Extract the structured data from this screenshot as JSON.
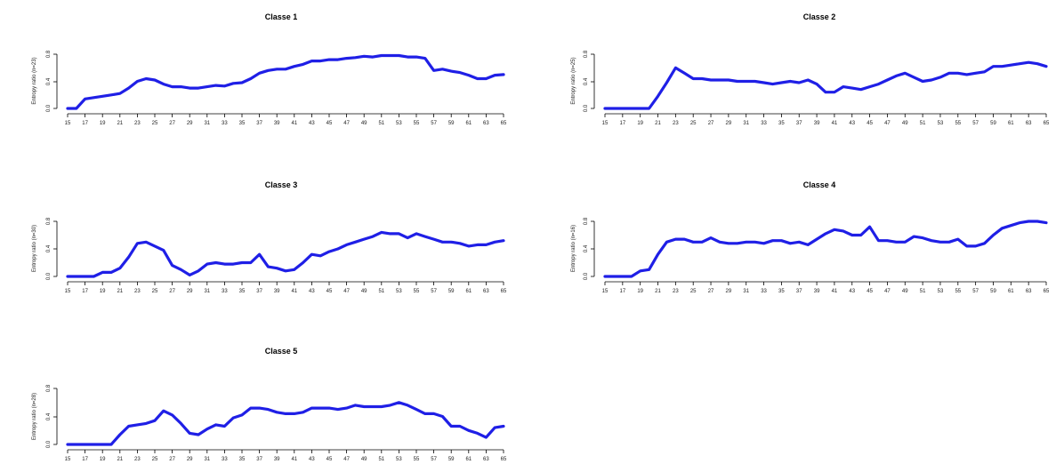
{
  "colors": {
    "line": "#1f1fe6",
    "axis": "#000000",
    "background": "#ffffff"
  },
  "chart_data": [
    {
      "type": "line",
      "title": "Classe 1",
      "ylabel": "Entropy ratio (n=23)",
      "ylim": [
        0,
        1
      ],
      "yticks": [
        "0.0",
        "0.4",
        "0.8"
      ],
      "x": [
        15,
        16,
        17,
        18,
        19,
        20,
        21,
        22,
        23,
        24,
        25,
        26,
        27,
        28,
        29,
        30,
        31,
        32,
        33,
        34,
        35,
        36,
        37,
        38,
        39,
        40,
        41,
        42,
        43,
        44,
        45,
        46,
        47,
        48,
        49,
        50,
        51,
        52,
        53,
        54,
        55,
        56,
        57,
        58,
        59,
        60,
        61,
        62,
        63,
        64,
        65
      ],
      "xticks": [
        "15",
        "17",
        "19",
        "21",
        "23",
        "25",
        "27",
        "29",
        "31",
        "33",
        "35",
        "37",
        "39",
        "41",
        "43",
        "45",
        "47",
        "49",
        "51",
        "53",
        "55",
        "57",
        "59",
        "61",
        "63",
        "65"
      ],
      "values": [
        0.0,
        0.0,
        0.14,
        0.16,
        0.18,
        0.2,
        0.22,
        0.3,
        0.4,
        0.44,
        0.42,
        0.36,
        0.32,
        0.32,
        0.3,
        0.3,
        0.32,
        0.34,
        0.33,
        0.37,
        0.38,
        0.44,
        0.52,
        0.56,
        0.58,
        0.58,
        0.62,
        0.65,
        0.7,
        0.7,
        0.72,
        0.72,
        0.74,
        0.75,
        0.77,
        0.76,
        0.78,
        0.78,
        0.78,
        0.76,
        0.76,
        0.74,
        0.56,
        0.58,
        0.55,
        0.53,
        0.49,
        0.44,
        0.44,
        0.49,
        0.5
      ]
    },
    {
      "type": "line",
      "title": "Classe 2",
      "ylabel": "Entropy ratio (n=25)",
      "ylim": [
        0,
        1
      ],
      "yticks": [
        "0.0",
        "0.4",
        "0.8"
      ],
      "x": [
        15,
        16,
        17,
        18,
        19,
        20,
        21,
        22,
        23,
        24,
        25,
        26,
        27,
        28,
        29,
        30,
        31,
        32,
        33,
        34,
        35,
        36,
        37,
        38,
        39,
        40,
        41,
        42,
        43,
        44,
        45,
        46,
        47,
        48,
        49,
        50,
        51,
        52,
        53,
        54,
        55,
        56,
        57,
        58,
        59,
        60,
        61,
        62,
        63,
        64,
        65
      ],
      "xticks": [
        "15",
        "17",
        "19",
        "21",
        "23",
        "25",
        "27",
        "29",
        "31",
        "33",
        "35",
        "37",
        "39",
        "41",
        "43",
        "45",
        "47",
        "49",
        "51",
        "53",
        "55",
        "57",
        "59",
        "61",
        "63",
        "65"
      ],
      "values": [
        0.0,
        0.0,
        0.0,
        0.0,
        0.0,
        0.0,
        0.18,
        0.38,
        0.6,
        0.52,
        0.44,
        0.44,
        0.42,
        0.42,
        0.42,
        0.4,
        0.4,
        0.4,
        0.38,
        0.36,
        0.38,
        0.4,
        0.38,
        0.42,
        0.36,
        0.24,
        0.24,
        0.32,
        0.3,
        0.28,
        0.32,
        0.36,
        0.42,
        0.48,
        0.52,
        0.46,
        0.4,
        0.42,
        0.46,
        0.52,
        0.52,
        0.5,
        0.52,
        0.54,
        0.62,
        0.62,
        0.64,
        0.66,
        0.68,
        0.66,
        0.62
      ]
    },
    {
      "type": "line",
      "title": "Classe 3",
      "ylabel": "Entropy ratio (n=30)",
      "ylim": [
        0,
        1
      ],
      "yticks": [
        "0.0",
        "0.4",
        "0.8"
      ],
      "x": [
        15,
        16,
        17,
        18,
        19,
        20,
        21,
        22,
        23,
        24,
        25,
        26,
        27,
        28,
        29,
        30,
        31,
        32,
        33,
        34,
        35,
        36,
        37,
        38,
        39,
        40,
        41,
        42,
        43,
        44,
        45,
        46,
        47,
        48,
        49,
        50,
        51,
        52,
        53,
        54,
        55,
        56,
        57,
        58,
        59,
        60,
        61,
        62,
        63,
        64,
        65
      ],
      "xticks": [
        "15",
        "17",
        "19",
        "21",
        "23",
        "25",
        "27",
        "29",
        "31",
        "33",
        "35",
        "37",
        "39",
        "41",
        "43",
        "45",
        "47",
        "49",
        "51",
        "53",
        "55",
        "57",
        "59",
        "61",
        "63",
        "65"
      ],
      "values": [
        0.0,
        0.0,
        0.0,
        0.0,
        0.06,
        0.06,
        0.12,
        0.28,
        0.48,
        0.5,
        0.44,
        0.38,
        0.16,
        0.1,
        0.02,
        0.08,
        0.18,
        0.2,
        0.18,
        0.18,
        0.2,
        0.2,
        0.32,
        0.14,
        0.12,
        0.08,
        0.1,
        0.2,
        0.32,
        0.3,
        0.36,
        0.4,
        0.46,
        0.5,
        0.54,
        0.58,
        0.64,
        0.62,
        0.62,
        0.56,
        0.62,
        0.58,
        0.54,
        0.5,
        0.5,
        0.48,
        0.44,
        0.46,
        0.46,
        0.5,
        0.52
      ]
    },
    {
      "type": "line",
      "title": "Classe 4",
      "ylabel": "Entropy ratio (n=16)",
      "ylim": [
        0,
        1
      ],
      "yticks": [
        "0.0",
        "0.4",
        "0.8"
      ],
      "x": [
        15,
        16,
        17,
        18,
        19,
        20,
        21,
        22,
        23,
        24,
        25,
        26,
        27,
        28,
        29,
        30,
        31,
        32,
        33,
        34,
        35,
        36,
        37,
        38,
        39,
        40,
        41,
        42,
        43,
        44,
        45,
        46,
        47,
        48,
        49,
        50,
        51,
        52,
        53,
        54,
        55,
        56,
        57,
        58,
        59,
        60,
        61,
        62,
        63,
        64,
        65
      ],
      "xticks": [
        "15",
        "17",
        "19",
        "21",
        "23",
        "25",
        "27",
        "29",
        "31",
        "33",
        "35",
        "37",
        "39",
        "41",
        "43",
        "45",
        "47",
        "49",
        "51",
        "53",
        "55",
        "57",
        "59",
        "61",
        "63",
        "65"
      ],
      "values": [
        0.0,
        0.0,
        0.0,
        0.0,
        0.08,
        0.1,
        0.32,
        0.5,
        0.54,
        0.54,
        0.5,
        0.5,
        0.56,
        0.5,
        0.48,
        0.48,
        0.5,
        0.5,
        0.48,
        0.52,
        0.52,
        0.48,
        0.5,
        0.46,
        0.54,
        0.62,
        0.68,
        0.66,
        0.6,
        0.6,
        0.72,
        0.52,
        0.52,
        0.5,
        0.5,
        0.58,
        0.56,
        0.52,
        0.5,
        0.5,
        0.54,
        0.44,
        0.44,
        0.48,
        0.6,
        0.7,
        0.74,
        0.78,
        0.8,
        0.8,
        0.78
      ]
    },
    {
      "type": "line",
      "title": "Classe 5",
      "ylabel": "Entropy ratio (n=28)",
      "ylim": [
        0,
        1
      ],
      "yticks": [
        "0.0",
        "0.4",
        "0.8"
      ],
      "x": [
        15,
        16,
        17,
        18,
        19,
        20,
        21,
        22,
        23,
        24,
        25,
        26,
        27,
        28,
        29,
        30,
        31,
        32,
        33,
        34,
        35,
        36,
        37,
        38,
        39,
        40,
        41,
        42,
        43,
        44,
        45,
        46,
        47,
        48,
        49,
        50,
        51,
        52,
        53,
        54,
        55,
        56,
        57,
        58,
        59,
        60,
        61,
        62,
        63,
        64,
        65
      ],
      "xticks": [
        "15",
        "17",
        "19",
        "21",
        "23",
        "25",
        "27",
        "29",
        "31",
        "33",
        "35",
        "37",
        "39",
        "41",
        "43",
        "45",
        "47",
        "49",
        "51",
        "53",
        "55",
        "57",
        "59",
        "61",
        "63",
        "65"
      ],
      "values": [
        0.0,
        0.0,
        0.0,
        0.0,
        0.0,
        0.0,
        0.14,
        0.26,
        0.28,
        0.3,
        0.34,
        0.48,
        0.42,
        0.3,
        0.16,
        0.14,
        0.22,
        0.28,
        0.26,
        0.38,
        0.42,
        0.52,
        0.52,
        0.5,
        0.46,
        0.44,
        0.44,
        0.46,
        0.52,
        0.52,
        0.52,
        0.5,
        0.52,
        0.56,
        0.54,
        0.54,
        0.54,
        0.56,
        0.6,
        0.56,
        0.5,
        0.44,
        0.44,
        0.4,
        0.26,
        0.26,
        0.2,
        0.16,
        0.1,
        0.24,
        0.26
      ]
    }
  ]
}
